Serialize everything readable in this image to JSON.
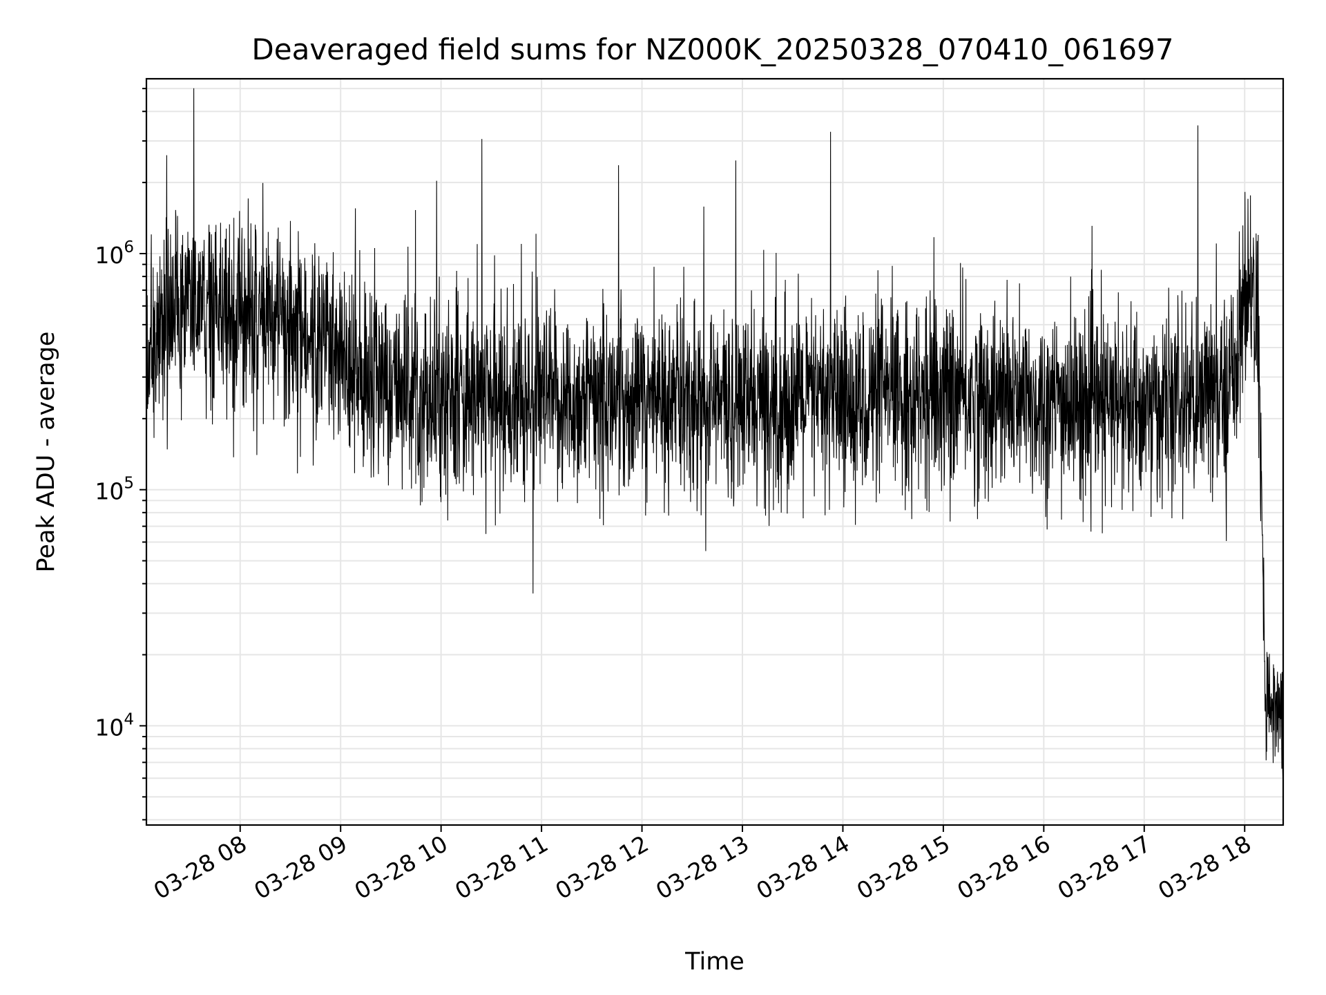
{
  "chart_data": {
    "type": "line",
    "title": "Deaveraged field sums for NZ000K_20250328_070410_061697",
    "xlabel": "Time",
    "ylabel": "Peak ADU - average",
    "yscale": "log",
    "ylim": [
      3800,
      5500000
    ],
    "xlim": [
      "2025-03-28 07:04",
      "2025-03-28 18:23"
    ],
    "grid": true,
    "x_tick_labels": [
      "03-28 08",
      "03-28 09",
      "03-28 10",
      "03-28 11",
      "03-28 12",
      "03-28 13",
      "03-28 14",
      "03-28 15",
      "03-28 16",
      "03-28 17",
      "03-28 18"
    ],
    "y_tick_labels": [
      {
        "base": "10",
        "exp": "4",
        "value": 10000
      },
      {
        "base": "10",
        "exp": "5",
        "value": 100000
      },
      {
        "base": "10",
        "exp": "6",
        "value": 1000000
      }
    ],
    "series": [
      {
        "color": "#000000",
        "x": [
          "2025-03-28 07:04",
          "2025-03-28 07:30",
          "2025-03-28 08:00",
          "2025-03-28 08:30",
          "2025-03-28 09:00",
          "2025-03-28 09:30",
          "2025-03-28 10:00",
          "2025-03-28 11:00",
          "2025-03-28 12:00",
          "2025-03-28 13:00",
          "2025-03-28 14:00",
          "2025-03-28 15:00",
          "2025-03-28 16:00",
          "2025-03-28 17:00",
          "2025-03-28 17:50",
          "2025-03-28 18:03",
          "2025-03-28 18:08",
          "2025-03-28 18:12",
          "2025-03-28 18:16",
          "2025-03-28 18:23"
        ],
        "values": [
          450000,
          650000,
          550000,
          500000,
          350000,
          280000,
          250000,
          230000,
          240000,
          230000,
          240000,
          250000,
          230000,
          220000,
          250000,
          800000,
          500000,
          15000,
          13000,
          11000
        ]
      }
    ]
  }
}
